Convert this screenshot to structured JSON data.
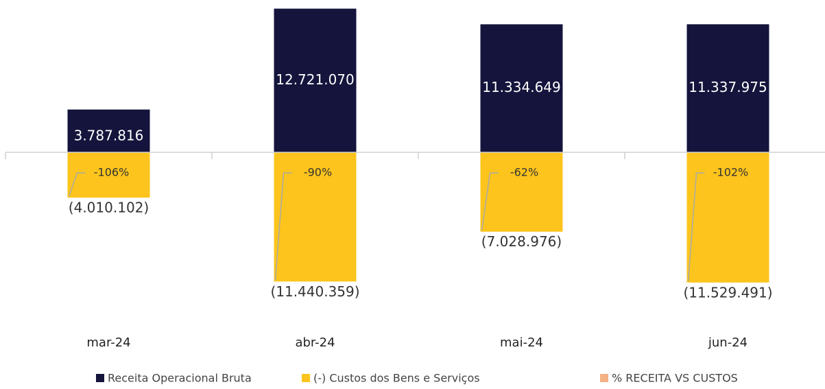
{
  "chart_data": {
    "type": "bar",
    "categories": [
      "mar-24",
      "abr-24",
      "mai-24",
      "jun-24"
    ],
    "series": [
      {
        "name": "Receita Operacional Bruta",
        "color": "#14143c",
        "values": [
          3787816,
          12721070,
          11334649,
          11337975
        ],
        "value_labels": [
          "3.787.816",
          "12.721.070",
          "11.334.649",
          "11.337.975"
        ]
      },
      {
        "name": "(-) Custos dos Bens e Serviços",
        "color": "#fcc41c",
        "values": [
          -4010102,
          -11440359,
          -7028976,
          -11529491
        ],
        "value_labels": [
          "(4.010.102)",
          "(11.440.359)",
          "(7.028.976)",
          "(11.529.491)"
        ]
      },
      {
        "name": "% RECEITA VS CUSTOS",
        "color": "#f4b183",
        "values": [
          -106,
          -90,
          -62,
          -102
        ],
        "value_labels": [
          "-106%",
          "-90%",
          "-62%",
          "-102%"
        ]
      }
    ],
    "ylim": [
      -13000000,
      13000000
    ],
    "legend": "bottom"
  }
}
